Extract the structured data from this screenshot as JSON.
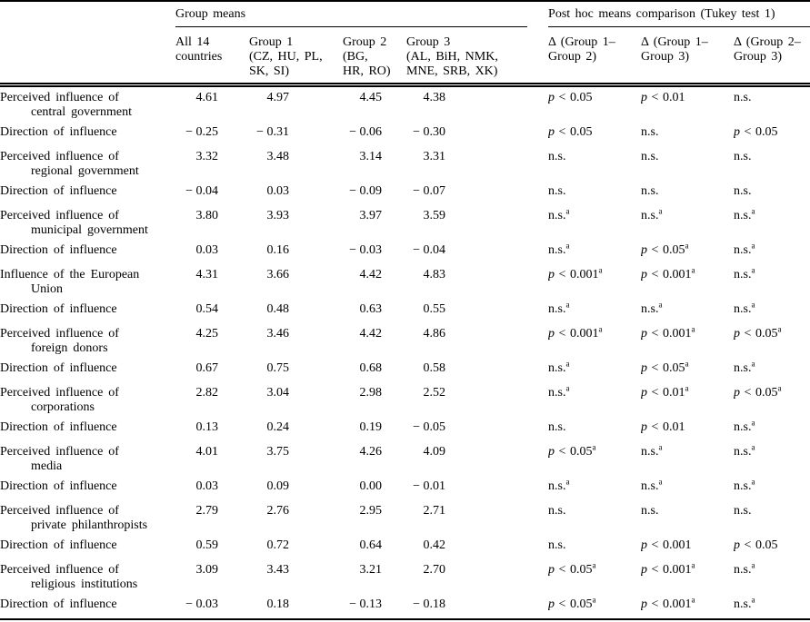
{
  "colors": {
    "text": "#000000",
    "background": "#ffffff",
    "rule": "#000000"
  },
  "table": {
    "spanners": {
      "group_means": "Group means",
      "post_hoc": "Post hoc means comparison (Tukey test 1)"
    },
    "columns": [
      "All 14\ncountries",
      "Group 1\n(CZ, HU, PL,\nSK, SI)",
      "Group 2\n(BG,\nHR, RO)",
      "Group 3\n(AL, BiH, NMK,\nMNE, SRB, XK)",
      "Δ (Group 1–\nGroup 2)",
      "Δ (Group 1–\nGroup 3)",
      "Δ (Group 2–\nGroup 3)"
    ],
    "footnote_marker": "a",
    "rows": [
      {
        "label": "Perceived influence of\ncentral government",
        "means": [
          "4.61",
          "4.97",
          "4.45",
          "4.38"
        ],
        "posthoc": [
          {
            "v": "p < 0.05",
            "a": false
          },
          {
            "v": "p < 0.01",
            "a": false
          },
          {
            "v": "n.s.",
            "a": false
          }
        ]
      },
      {
        "label": "Direction of influence",
        "means": [
          "− 0.25",
          "− 0.31",
          "− 0.06",
          "− 0.30"
        ],
        "posthoc": [
          {
            "v": "p < 0.05",
            "a": false
          },
          {
            "v": "n.s.",
            "a": false
          },
          {
            "v": "p < 0.05",
            "a": false
          }
        ]
      },
      {
        "label": "Perceived influence of\nregional government",
        "means": [
          "3.32",
          "3.48",
          "3.14",
          "3.31"
        ],
        "posthoc": [
          {
            "v": "n.s.",
            "a": false
          },
          {
            "v": "n.s.",
            "a": false
          },
          {
            "v": "n.s.",
            "a": false
          }
        ]
      },
      {
        "label": "Direction of influence",
        "means": [
          "− 0.04",
          "0.03",
          "− 0.09",
          "− 0.07"
        ],
        "posthoc": [
          {
            "v": "n.s.",
            "a": false
          },
          {
            "v": "n.s.",
            "a": false
          },
          {
            "v": "n.s.",
            "a": false
          }
        ]
      },
      {
        "label": "Perceived influence of\nmunicipal government",
        "means": [
          "3.80",
          "3.93",
          "3.97",
          "3.59"
        ],
        "posthoc": [
          {
            "v": "n.s.",
            "a": true
          },
          {
            "v": "n.s.",
            "a": true
          },
          {
            "v": "n.s.",
            "a": true
          }
        ]
      },
      {
        "label": "Direction of influence",
        "means": [
          "0.03",
          "0.16",
          "− 0.03",
          "− 0.04"
        ],
        "posthoc": [
          {
            "v": "n.s.",
            "a": true
          },
          {
            "v": "p < 0.05",
            "a": true
          },
          {
            "v": "n.s.",
            "a": true
          }
        ]
      },
      {
        "label": "Influence of the European\nUnion",
        "means": [
          "4.31",
          "3.66",
          "4.42",
          "4.83"
        ],
        "posthoc": [
          {
            "v": "p < 0.001",
            "a": true
          },
          {
            "v": "p < 0.001",
            "a": true
          },
          {
            "v": "n.s.",
            "a": true
          }
        ]
      },
      {
        "label": "Direction of influence",
        "means": [
          "0.54",
          "0.48",
          "0.63",
          "0.55"
        ],
        "posthoc": [
          {
            "v": "n.s.",
            "a": true
          },
          {
            "v": "n.s.",
            "a": true
          },
          {
            "v": "n.s.",
            "a": true
          }
        ]
      },
      {
        "label": "Perceived influence of\nforeign donors",
        "means": [
          "4.25",
          "3.46",
          "4.42",
          "4.86"
        ],
        "posthoc": [
          {
            "v": "p < 0.001",
            "a": true
          },
          {
            "v": "p < 0.001",
            "a": true
          },
          {
            "v": "p < 0.05",
            "a": true
          }
        ]
      },
      {
        "label": "Direction of influence",
        "means": [
          "0.67",
          "0.75",
          "0.68",
          "0.58"
        ],
        "posthoc": [
          {
            "v": "n.s.",
            "a": true
          },
          {
            "v": "p < 0.05",
            "a": true
          },
          {
            "v": "n.s.",
            "a": true
          }
        ]
      },
      {
        "label": "Perceived influence of\ncorporations",
        "means": [
          "2.82",
          "3.04",
          "2.98",
          "2.52"
        ],
        "posthoc": [
          {
            "v": "n.s.",
            "a": true
          },
          {
            "v": "p < 0.01",
            "a": true
          },
          {
            "v": "p < 0.05",
            "a": true
          }
        ]
      },
      {
        "label": "Direction of influence",
        "means": [
          "0.13",
          "0.24",
          "0.19",
          "− 0.05"
        ],
        "posthoc": [
          {
            "v": "n.s.",
            "a": false
          },
          {
            "v": "p < 0.01",
            "a": false
          },
          {
            "v": "n.s.",
            "a": true
          }
        ]
      },
      {
        "label": "Perceived influence of\nmedia",
        "means": [
          "4.01",
          "3.75",
          "4.26",
          "4.09"
        ],
        "posthoc": [
          {
            "v": "p < 0.05",
            "a": true
          },
          {
            "v": "n.s.",
            "a": true
          },
          {
            "v": "n.s.",
            "a": true
          }
        ]
      },
      {
        "label": "Direction of influence",
        "means": [
          "0.03",
          "0.09",
          "0.00",
          "− 0.01"
        ],
        "posthoc": [
          {
            "v": "n.s.",
            "a": true
          },
          {
            "v": "n.s.",
            "a": true
          },
          {
            "v": "n.s.",
            "a": true
          }
        ]
      },
      {
        "label": "Perceived influence of\nprivate philanthropists",
        "means": [
          "2.79",
          "2.76",
          "2.95",
          "2.71"
        ],
        "posthoc": [
          {
            "v": "n.s.",
            "a": false
          },
          {
            "v": "n.s.",
            "a": false
          },
          {
            "v": "n.s.",
            "a": false
          }
        ]
      },
      {
        "label": "Direction of influence",
        "means": [
          "0.59",
          "0.72",
          "0.64",
          "0.42"
        ],
        "posthoc": [
          {
            "v": "n.s.",
            "a": false
          },
          {
            "v": "p < 0.001",
            "a": false
          },
          {
            "v": "p < 0.05",
            "a": false
          }
        ]
      },
      {
        "label": "Perceived influence of\nreligious institutions",
        "means": [
          "3.09",
          "3.43",
          "3.21",
          "2.70"
        ],
        "posthoc": [
          {
            "v": "p < 0.05",
            "a": true
          },
          {
            "v": "p < 0.001",
            "a": true
          },
          {
            "v": "n.s.",
            "a": true
          }
        ]
      },
      {
        "label": "Direction of influence",
        "means": [
          "− 0.03",
          "0.18",
          "− 0.13",
          "− 0.18"
        ],
        "posthoc": [
          {
            "v": "p < 0.05",
            "a": true
          },
          {
            "v": "p < 0.001",
            "a": true
          },
          {
            "v": "n.s.",
            "a": true
          }
        ]
      }
    ]
  }
}
